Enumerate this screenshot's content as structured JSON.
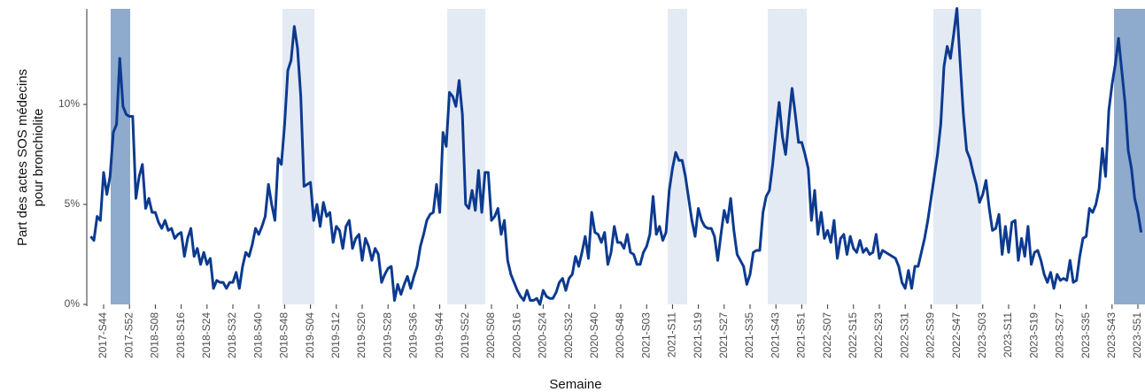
{
  "chart_data": {
    "type": "line",
    "ylabel": [
      "Part des actes SOS médecins",
      "pour bronchiolite"
    ],
    "xlabel": "Semaine",
    "color": "#0c3a8f",
    "ylim": [
      0,
      14.8
    ],
    "yticks": [
      {
        "value": 0,
        "label": "0%"
      },
      {
        "value": 5,
        "label": "5%"
      },
      {
        "value": 10,
        "label": "10%"
      }
    ],
    "categories": [
      null,
      null,
      null,
      null,
      "2017-S44",
      null,
      null,
      null,
      null,
      null,
      null,
      null,
      "2017-S52",
      null,
      null,
      null,
      null,
      null,
      null,
      null,
      "2018-S08",
      null,
      null,
      null,
      null,
      null,
      null,
      null,
      "2018-S16",
      null,
      null,
      null,
      null,
      null,
      null,
      null,
      "2018-S24",
      null,
      null,
      null,
      null,
      null,
      null,
      null,
      "2018-S32",
      null,
      null,
      null,
      null,
      null,
      null,
      null,
      "2018-S40",
      null,
      null,
      null,
      null,
      null,
      null,
      null,
      "2018-S48",
      null,
      null,
      null,
      null,
      null,
      null,
      null,
      "2019-S04",
      null,
      null,
      null,
      null,
      null,
      null,
      null,
      "2019-S12",
      null,
      null,
      null,
      null,
      null,
      null,
      null,
      "2019-S20",
      null,
      null,
      null,
      null,
      null,
      null,
      null,
      "2019-S28",
      null,
      null,
      null,
      null,
      null,
      null,
      null,
      "2019-S36",
      null,
      null,
      null,
      null,
      null,
      null,
      null,
      "2019-S44",
      null,
      null,
      null,
      null,
      null,
      null,
      null,
      "2019-S52",
      null,
      null,
      null,
      null,
      null,
      null,
      null,
      "2020-S08",
      null,
      null,
      null,
      null,
      null,
      null,
      null,
      "2020-S16",
      null,
      null,
      null,
      null,
      null,
      null,
      null,
      "2020-S24",
      null,
      null,
      null,
      null,
      null,
      null,
      null,
      "2020-S32",
      null,
      null,
      null,
      null,
      null,
      null,
      null,
      "2020-S40",
      null,
      null,
      null,
      null,
      null,
      null,
      null,
      "2020-S48",
      null,
      null,
      null,
      null,
      null,
      null,
      null,
      "2021-S03",
      null,
      null,
      null,
      null,
      null,
      null,
      null,
      "2021-S11",
      null,
      null,
      null,
      null,
      null,
      null,
      null,
      "2021-S19",
      null,
      null,
      null,
      null,
      null,
      null,
      null,
      "2021-S27",
      null,
      null,
      null,
      null,
      null,
      null,
      null,
      "2021-S35",
      null,
      null,
      null,
      null,
      null,
      null,
      null,
      "2021-S43",
      null,
      null,
      null,
      null,
      null,
      null,
      null,
      "2021-S51",
      null,
      null,
      null,
      null,
      null,
      null,
      null,
      "2022-S07",
      null,
      null,
      null,
      null,
      null,
      null,
      null,
      "2022-S15",
      null,
      null,
      null,
      null,
      null,
      null,
      null,
      "2022-S23",
      null,
      null,
      null,
      null,
      null,
      null,
      null,
      "2022-S31",
      null,
      null,
      null,
      null,
      null,
      null,
      null,
      "2022-S39",
      null,
      null,
      null,
      null,
      null,
      null,
      null,
      "2022-S47",
      null,
      null,
      null,
      null,
      null,
      null,
      null,
      "2023-S03",
      null,
      null,
      null,
      null,
      null,
      null,
      null,
      "2023-S11",
      null,
      null,
      null,
      null,
      null,
      null,
      null,
      "2023-S19",
      null,
      null,
      null,
      null,
      null,
      null,
      null,
      "2023-S27",
      null,
      null,
      null,
      null,
      null,
      null,
      null,
      "2023-S35",
      null,
      null,
      null,
      null,
      null,
      null,
      null,
      "2023-S43",
      null,
      null,
      null,
      null,
      null,
      null,
      null,
      "2023-S51",
      null
    ],
    "values": [
      3.4,
      3.2,
      4.4,
      4.2,
      6.6,
      5.5,
      6.4,
      8.6,
      9.0,
      12.3,
      9.9,
      9.5,
      9.4,
      9.4,
      5.3,
      6.4,
      7.0,
      4.8,
      5.3,
      4.6,
      4.6,
      4.1,
      3.8,
      4.2,
      3.7,
      3.8,
      3.3,
      3.5,
      3.6,
      2.4,
      3.3,
      3.8,
      2.4,
      2.8,
      2.0,
      2.6,
      2.0,
      2.3,
      0.8,
      1.2,
      1.1,
      1.1,
      0.8,
      1.1,
      1.1,
      1.6,
      0.8,
      1.9,
      2.6,
      2.4,
      3.0,
      3.8,
      3.5,
      3.9,
      4.4,
      6.0,
      5.0,
      4.2,
      7.3,
      7.0,
      9.0,
      11.7,
      12.2,
      13.9,
      12.8,
      10.4,
      5.9,
      6.0,
      6.1,
      4.2,
      5.0,
      3.9,
      5.1,
      4.4,
      4.6,
      3.1,
      3.9,
      3.7,
      2.8,
      3.9,
      4.2,
      2.8,
      3.3,
      3.5,
      2.2,
      3.3,
      2.9,
      2.2,
      2.8,
      2.5,
      1.1,
      1.5,
      1.8,
      1.9,
      0.2,
      1.0,
      0.5,
      1.0,
      1.4,
      0.8,
      1.4,
      1.9,
      2.9,
      3.5,
      4.2,
      4.5,
      4.6,
      6.0,
      4.6,
      8.6,
      7.9,
      10.6,
      10.4,
      9.9,
      11.2,
      9.5,
      5.0,
      4.8,
      5.7,
      4.7,
      6.7,
      4.6,
      6.6,
      6.6,
      4.2,
      4.4,
      4.8,
      3.5,
      4.2,
      2.2,
      1.5,
      1.1,
      0.7,
      0.4,
      0.2,
      0.7,
      0.2,
      0.2,
      0.3,
      0,
      0.7,
      0.4,
      0.3,
      0.3,
      0.6,
      1.1,
      1.3,
      0.7,
      1.3,
      1.5,
      2.4,
      1.9,
      2.6,
      3.4,
      2.3,
      4.6,
      3.6,
      3.5,
      3.1,
      3.6,
      2.0,
      2.6,
      3.9,
      3.1,
      3.1,
      2.8,
      3.5,
      2.6,
      2.5,
      2.0,
      2.0,
      2.6,
      2.9,
      3.5,
      5.4,
      3.5,
      3.9,
      3.2,
      3.6,
      5.7,
      6.8,
      7.6,
      7.2,
      7.2,
      6.4,
      5.3,
      4.2,
      3.4,
      4.8,
      4.2,
      3.9,
      3.8,
      3.8,
      3.4,
      2.2,
      3.5,
      4.7,
      4.1,
      5.3,
      3.7,
      2.5,
      2.2,
      1.9,
      1.0,
      1.5,
      2.6,
      2.7,
      2.7,
      4.6,
      5.4,
      5.7,
      7.0,
      8.6,
      10.1,
      8.4,
      7.5,
      9.2,
      10.8,
      9.5,
      8.1,
      8.1,
      7.5,
      6.8,
      4.2,
      5.7,
      3.5,
      4.6,
      3.3,
      3.7,
      3.1,
      4.2,
      2.3,
      3.3,
      3.5,
      2.5,
      3.4,
      2.8,
      2.6,
      3.2,
      2.6,
      2.8,
      2.5,
      2.6,
      3.5,
      2.3,
      2.7,
      2.6,
      2.5,
      2.4,
      2.3,
      1.9,
      1.1,
      0.8,
      1.7,
      0.8,
      1.9,
      1.9,
      2.6,
      3.3,
      4.2,
      5.3,
      6.4,
      7.5,
      9.0,
      11.9,
      12.9,
      12.3,
      13.5,
      14.8,
      12.1,
      9.5,
      7.7,
      7.3,
      6.6,
      6.0,
      5.1,
      5.5,
      6.2,
      4.8,
      3.7,
      3.8,
      4.5,
      2.5,
      3.9,
      2.6,
      4.1,
      4.2,
      2.2,
      3.3,
      2.4,
      3.9,
      2.0,
      2.6,
      2.7,
      2.2,
      1.5,
      1.1,
      1.6,
      0.8,
      1.5,
      1.2,
      1.3,
      1.2,
      2.2,
      1.1,
      1.2,
      2.4,
      3.3,
      3.4,
      4.8,
      4.6,
      5.0,
      5.8,
      7.8,
      6.4,
      9.7,
      11.0,
      12.0,
      13.3,
      11.7,
      10.1,
      7.7,
      6.8,
      5.3,
      4.6,
      3.6
    ]
  }
}
